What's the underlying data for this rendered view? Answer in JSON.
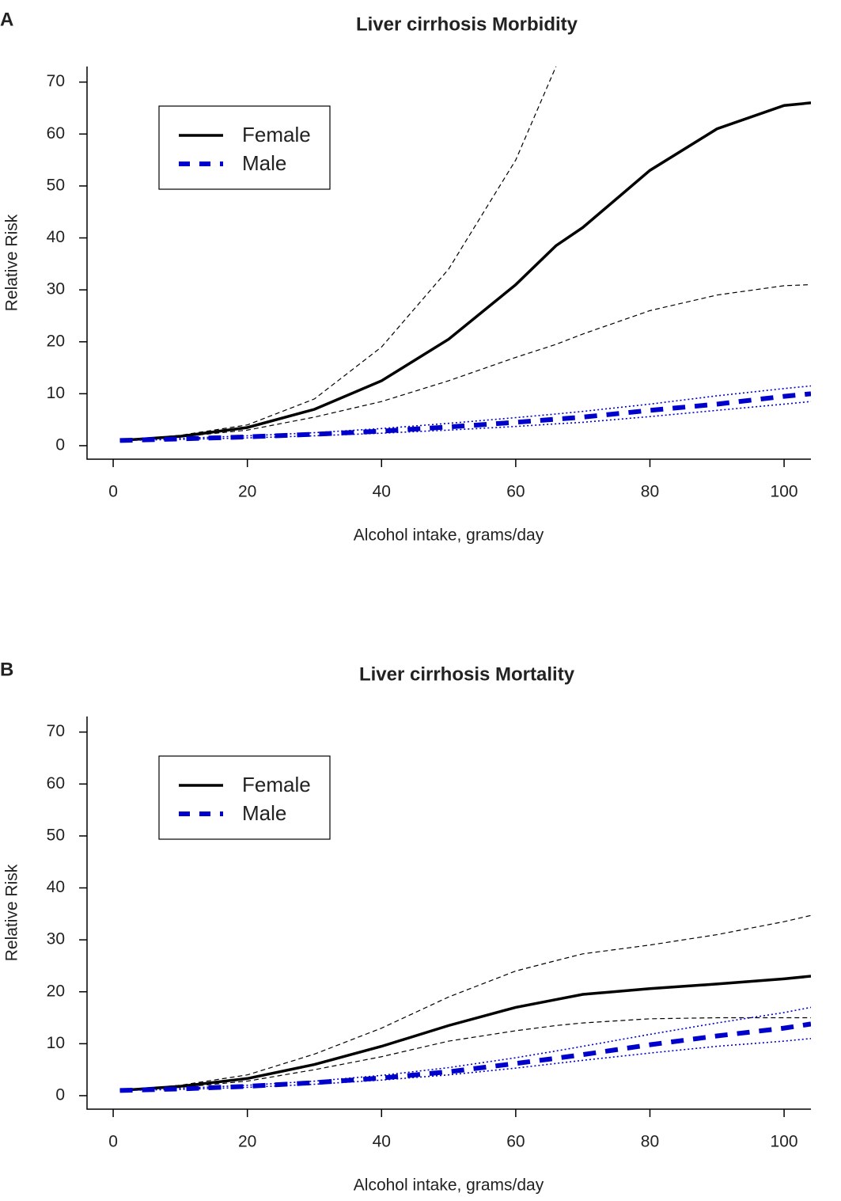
{
  "chart_data": [
    {
      "type": "line",
      "panel_label": "A",
      "title": "Liver cirrhosis Morbidity",
      "x_label": "Alcohol intake, grams/day",
      "y_label": "Relative Risk",
      "x": [
        1,
        10,
        20,
        30,
        40,
        50,
        60,
        66,
        70,
        80,
        90,
        100,
        104
      ],
      "xlim": [
        -3.9,
        104
      ],
      "ylim": [
        -2.6,
        73
      ],
      "xticks": [
        0,
        20,
        40,
        60,
        80,
        100
      ],
      "yticks": [
        0,
        10,
        20,
        30,
        40,
        50,
        60,
        70
      ],
      "legend": "upper left",
      "series": [
        {
          "name": "Female",
          "color": "#000000",
          "style": "solid",
          "values": [
            1,
            1.8,
            3.5,
            7,
            12.5,
            20.5,
            31,
            38.5,
            42,
            53,
            61,
            65.5,
            66
          ]
        },
        {
          "color": "#000000",
          "style": "dashed",
          "values": [
            1,
            2,
            4,
            9,
            19,
            34,
            55,
            73,
            null,
            null,
            null,
            null,
            null
          ]
        },
        {
          "color": "#000000",
          "style": "dashed",
          "values": [
            1,
            1.7,
            3,
            5.5,
            8.5,
            12.5,
            17,
            19.5,
            21.5,
            26,
            29,
            30.8,
            31
          ]
        },
        {
          "name": "Male",
          "color": "#0000cc",
          "style": "thick-dashed",
          "values": [
            1,
            1.3,
            1.7,
            2.2,
            2.8,
            3.6,
            4.5,
            5.1,
            5.5,
            6.8,
            8,
            9.5,
            10
          ]
        },
        {
          "color": "#0000cc",
          "style": "dotted",
          "values": [
            1,
            1.4,
            1.9,
            2.5,
            3.3,
            4.3,
            5.4,
            6.1,
            6.6,
            8,
            9.6,
            11,
            11.5
          ]
        },
        {
          "color": "#0000cc",
          "style": "dotted",
          "values": [
            1,
            1.2,
            1.5,
            1.9,
            2.4,
            3,
            3.7,
            4.2,
            4.5,
            5.6,
            6.8,
            8,
            8.5
          ]
        }
      ]
    },
    {
      "type": "line",
      "panel_label": "B",
      "title": "Liver cirrhosis Mortality",
      "x_label": "Alcohol intake, grams/day",
      "y_label": "Relative Risk",
      "x": [
        1,
        10,
        20,
        30,
        40,
        50,
        60,
        66,
        70,
        80,
        90,
        100,
        104
      ],
      "xlim": [
        -3.9,
        104
      ],
      "ylim": [
        -2.6,
        73
      ],
      "xticks": [
        0,
        20,
        40,
        60,
        80,
        100
      ],
      "yticks": [
        0,
        10,
        20,
        30,
        40,
        50,
        60,
        70
      ],
      "legend": "upper left",
      "series": [
        {
          "name": "Female",
          "color": "#000000",
          "style": "solid",
          "values": [
            1,
            1.8,
            3.3,
            6,
            9.5,
            13.5,
            17,
            18.5,
            19.5,
            20.6,
            21.5,
            22.5,
            23
          ]
        },
        {
          "color": "#000000",
          "style": "dashed",
          "values": [
            1,
            2,
            4,
            8,
            13,
            19,
            24,
            26,
            27.3,
            29,
            31,
            33.5,
            34.7
          ]
        },
        {
          "color": "#000000",
          "style": "dashed",
          "values": [
            1,
            1.6,
            2.8,
            5,
            7.5,
            10.5,
            12.5,
            13.5,
            14,
            14.8,
            15,
            15,
            15
          ]
        },
        {
          "name": "Male",
          "color": "#0000cc",
          "style": "thick-dashed",
          "values": [
            1,
            1.3,
            1.8,
            2.5,
            3.4,
            4.6,
            6.2,
            7.2,
            7.9,
            9.8,
            11.5,
            13,
            13.8
          ]
        },
        {
          "color": "#0000cc",
          "style": "dotted",
          "values": [
            1,
            1.4,
            2,
            2.8,
            3.9,
            5.4,
            7.3,
            8.6,
            9.5,
            11.8,
            14,
            16,
            17
          ]
        },
        {
          "color": "#0000cc",
          "style": "dotted",
          "values": [
            1,
            1.2,
            1.6,
            2.2,
            3,
            4,
            5.3,
            6.2,
            6.8,
            8.2,
            9.5,
            10.5,
            11
          ]
        }
      ]
    }
  ]
}
